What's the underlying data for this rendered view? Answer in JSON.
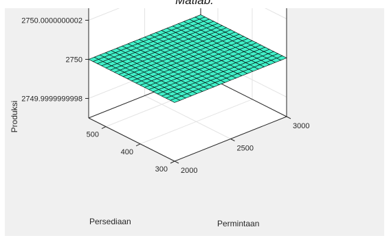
{
  "caption": "Matlab.",
  "chart_data": {
    "type": "surface",
    "title": "",
    "xlabel": "Permintaan",
    "ylabel": "Persediaan",
    "zlabel": "Produksi",
    "x_range": [
      2000,
      3000
    ],
    "y_range": [
      300,
      550
    ],
    "z_range": [
      2749.9999999997,
      2750.0000000003
    ],
    "x_ticks": [
      2000,
      2500,
      3000
    ],
    "y_ticks": [
      300,
      400,
      500
    ],
    "z_ticks": [
      2749.9999999998,
      2750,
      2750.0000000002
    ],
    "x_tick_labels": [
      "2000",
      "2500",
      "3000"
    ],
    "y_tick_labels": [
      "300",
      "400",
      "500"
    ],
    "z_tick_labels": [
      "2749.9999999998",
      "2750",
      "2750.0000000002"
    ],
    "surface_value": 2750,
    "grid": true,
    "face_color": "#40f0c8",
    "edge_color": "#000000",
    "background_color": "#f0f0f0"
  }
}
